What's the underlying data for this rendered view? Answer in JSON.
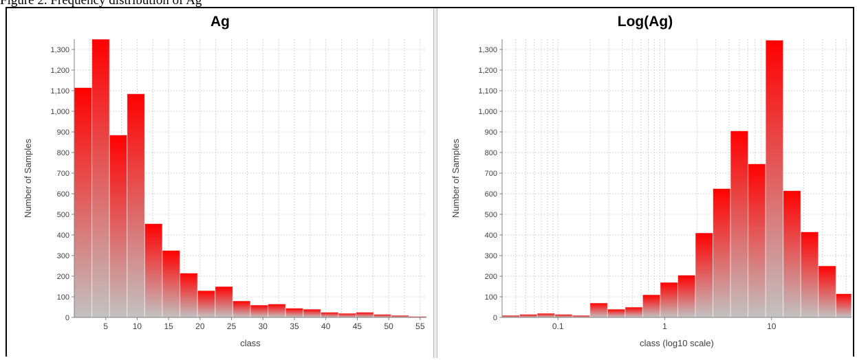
{
  "caption": "Figure 2. Frequency distribution of Ag",
  "chart_data": [
    {
      "type": "bar",
      "title": "Ag",
      "xlabel": "class",
      "ylabel": "Number of Samples",
      "xlim": [
        0,
        56
      ],
      "ylim": [
        0,
        1350
      ],
      "x_ticks": [
        5,
        10,
        15,
        20,
        25,
        30,
        35,
        40,
        45,
        50,
        55
      ],
      "x_tick_labels": [
        "5",
        "10",
        "15",
        "20",
        "25",
        "30",
        "35",
        "40",
        "45",
        "50",
        "55"
      ],
      "y_ticks": [
        0,
        100,
        200,
        300,
        400,
        500,
        600,
        700,
        800,
        900,
        1000,
        1100,
        1200,
        1300
      ],
      "y_tick_labels": [
        "0",
        "100",
        "200",
        "300",
        "400",
        "500",
        "600",
        "700",
        "800",
        "900",
        "1,000",
        "1,100",
        "1,200",
        "1,300"
      ],
      "grid": true,
      "bins": [
        [
          0,
          2.8
        ],
        [
          2.8,
          5.6
        ],
        [
          5.6,
          8.4
        ],
        [
          8.4,
          11.2
        ],
        [
          11.2,
          14
        ],
        [
          14,
          16.8
        ],
        [
          16.8,
          19.6
        ],
        [
          19.6,
          22.4
        ],
        [
          22.4,
          25.2
        ],
        [
          25.2,
          28
        ],
        [
          28,
          30.8
        ],
        [
          30.8,
          33.6
        ],
        [
          33.6,
          36.4
        ],
        [
          36.4,
          39.2
        ],
        [
          39.2,
          42
        ],
        [
          42,
          44.8
        ],
        [
          44.8,
          47.6
        ],
        [
          47.6,
          50.4
        ],
        [
          50.4,
          53.2
        ],
        [
          53.2,
          56
        ]
      ],
      "values": [
        1115,
        1350,
        885,
        1085,
        455,
        325,
        215,
        130,
        150,
        80,
        60,
        65,
        45,
        40,
        25,
        20,
        25,
        15,
        10,
        5
      ],
      "colors": {
        "bar_top": "#ff0000",
        "bar_bottom": "#c2c2c2"
      }
    },
    {
      "type": "bar",
      "title": "Log(Ag)",
      "xlabel": "class (log10 scale)",
      "ylabel": "Number of Samples",
      "x_scale": "log",
      "xlim": [
        0.03,
        56
      ],
      "ylim": [
        0,
        1350
      ],
      "x_ticks": [
        0.1,
        1,
        10
      ],
      "x_tick_labels": [
        "0.1",
        "1",
        "10"
      ],
      "y_ticks": [
        0,
        100,
        200,
        300,
        400,
        500,
        600,
        700,
        800,
        900,
        1000,
        1100,
        1200,
        1300
      ],
      "y_tick_labels": [
        "0",
        "100",
        "200",
        "300",
        "400",
        "500",
        "600",
        "700",
        "800",
        "900",
        "1,000",
        "1,100",
        "1,200",
        "1,300"
      ],
      "grid": true,
      "bins": [
        [
          0.03,
          0.0438
        ],
        [
          0.0438,
          0.064
        ],
        [
          0.064,
          0.0935
        ],
        [
          0.0935,
          0.1365
        ],
        [
          0.1365,
          0.1994
        ],
        [
          0.1994,
          0.2912
        ],
        [
          0.2912,
          0.4253
        ],
        [
          0.4253,
          0.6211
        ],
        [
          0.6211,
          0.9071
        ],
        [
          0.9071,
          1.3247
        ],
        [
          1.3247,
          1.9346
        ],
        [
          1.9346,
          2.8253
        ],
        [
          2.8253,
          4.1261
        ],
        [
          4.1261,
          6.0258
        ],
        [
          6.0258,
          8.8001
        ],
        [
          8.8001,
          12.8516
        ],
        [
          12.8516,
          18.7686
        ],
        [
          18.7686,
          27.4098
        ],
        [
          27.4098,
          40.0294
        ],
        [
          40.0294,
          56
        ]
      ],
      "values": [
        10,
        15,
        20,
        15,
        10,
        70,
        40,
        50,
        110,
        170,
        205,
        410,
        625,
        905,
        745,
        1345,
        615,
        415,
        250,
        115
      ],
      "colors": {
        "bar_top": "#ff0000",
        "bar_bottom": "#c2c2c2"
      }
    }
  ]
}
